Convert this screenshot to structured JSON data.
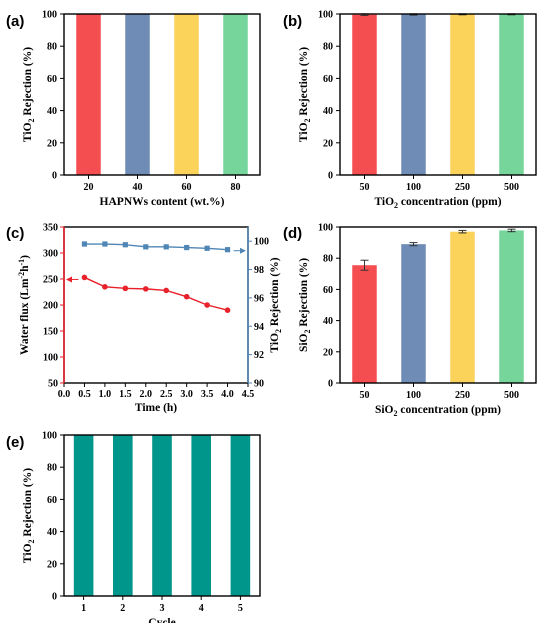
{
  "chart_data": [
    {
      "panel": "(a)",
      "type": "bar",
      "categories": [
        "20",
        "40",
        "60",
        "80"
      ],
      "values": [
        99.9,
        99.9,
        99.9,
        99.9
      ],
      "colors": [
        "#f54e50",
        "#6e8cb5",
        "#fbd25a",
        "#75d59a"
      ],
      "xlabel": "HAPNWs content (wt.%)",
      "ylabel_parts": [
        "TiO",
        "2",
        " Rejection (%)"
      ],
      "ylim": [
        0,
        100
      ],
      "yticks": [
        "0",
        "20",
        "40",
        "60",
        "80",
        "100"
      ],
      "guide_line": 100
    },
    {
      "panel": "(b)",
      "type": "bar",
      "categories": [
        "50",
        "100",
        "250",
        "500"
      ],
      "values": [
        99.6,
        99.7,
        99.8,
        99.8
      ],
      "errors": [
        0.5,
        0.4,
        0.3,
        0.3
      ],
      "colors": [
        "#f54e50",
        "#6e8cb5",
        "#fbd25a",
        "#75d59a"
      ],
      "xlabel_parts": [
        "TiO",
        "2",
        " concentration (ppm)"
      ],
      "ylabel_parts": [
        "TiO",
        "2",
        " Rejection (%)"
      ],
      "ylim": [
        0,
        100
      ],
      "yticks": [
        "0",
        "20",
        "40",
        "60",
        "80",
        "100"
      ],
      "guide_line": 100
    },
    {
      "panel": "(c)",
      "type": "line",
      "x": [
        0.5,
        1.0,
        1.5,
        2.0,
        2.5,
        3.0,
        3.5,
        4.0
      ],
      "xlabel": "Time (h)",
      "xlim": [
        0.0,
        4.5
      ],
      "xticks": [
        "0.0",
        "0.5",
        "1.0",
        "1.5",
        "2.0",
        "2.5",
        "3.0",
        "3.5",
        "4.0",
        "4.5"
      ],
      "series": [
        {
          "axis": "left",
          "color": "#e8212a",
          "values": [
            253,
            235,
            232,
            231,
            228,
            216,
            200,
            190
          ],
          "label_parts": [
            "Water flux (Lm",
            "-2",
            "h",
            "-1",
            ")"
          ]
        },
        {
          "axis": "right",
          "color": "#4f86b5",
          "values": [
            99.8,
            99.8,
            99.75,
            99.6,
            99.6,
            99.55,
            99.5,
            99.4
          ],
          "label_parts": [
            "TiO",
            "2",
            " Rejection (%)"
          ]
        }
      ],
      "ylim_left": [
        50,
        350
      ],
      "yticks_left": [
        "50",
        "100",
        "150",
        "200",
        "250",
        "300",
        "350"
      ],
      "ylim_right": [
        90,
        101
      ],
      "yticks_right": [
        "90",
        "92",
        "94",
        "96",
        "98",
        "100"
      ]
    },
    {
      "panel": "(d)",
      "type": "bar",
      "categories": [
        "50",
        "100",
        "250",
        "500"
      ],
      "values": [
        75.5,
        89.0,
        97.0,
        97.8
      ],
      "errors": [
        3.2,
        1.0,
        0.8,
        0.8
      ],
      "colors": [
        "#f54e50",
        "#6e8cb5",
        "#fbd25a",
        "#75d59a"
      ],
      "xlabel_parts": [
        "SiO",
        "2",
        " concentration (ppm)"
      ],
      "ylabel_parts": [
        "SiO",
        "2",
        " Rejection (%)"
      ],
      "ylim": [
        0,
        100
      ],
      "yticks": [
        "0",
        "20",
        "40",
        "60",
        "80",
        "100"
      ],
      "guide_line": 100
    },
    {
      "panel": "(e)",
      "type": "bar",
      "categories": [
        "1",
        "2",
        "3",
        "4",
        "5"
      ],
      "values": [
        99.9,
        99.9,
        99.9,
        99.9,
        99.9
      ],
      "colors": [
        "#00968c",
        "#00968c",
        "#00968c",
        "#00968c",
        "#00968c"
      ],
      "xlabel": "Cycle",
      "ylabel_parts": [
        "TiO",
        "2",
        " Rejection (%)"
      ],
      "ylim": [
        0,
        100
      ],
      "yticks": [
        "0",
        "20",
        "40",
        "60",
        "80",
        "100"
      ],
      "guide_line": 100
    }
  ]
}
